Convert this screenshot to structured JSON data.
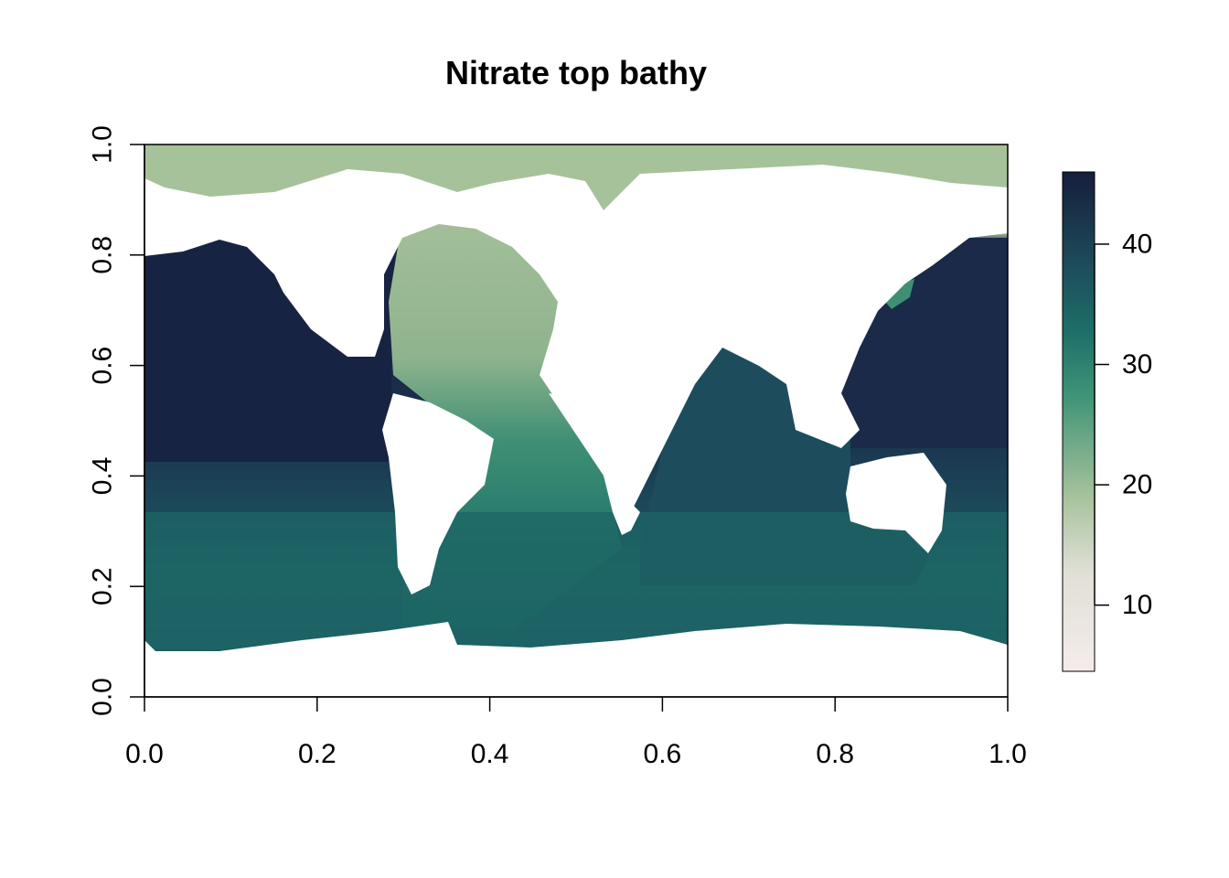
{
  "chart_data": {
    "type": "heatmap",
    "title": "Nitrate top bathy",
    "xlabel": "",
    "ylabel": "",
    "xlim": [
      0,
      1
    ],
    "ylim": [
      0,
      1
    ],
    "x_ticks": [
      "0.0",
      "0.2",
      "0.4",
      "0.6",
      "0.8",
      "1.0"
    ],
    "y_ticks": [
      "0.0",
      "0.2",
      "0.4",
      "0.6",
      "0.8",
      "1.0"
    ],
    "x_tick_values": [
      0,
      0.2,
      0.4,
      0.6,
      0.8,
      1.0
    ],
    "y_tick_values": [
      0,
      0.2,
      0.4,
      0.6,
      0.8,
      1.0
    ],
    "colorbar": {
      "range": [
        4.5,
        46
      ],
      "ticks": [
        "10",
        "20",
        "30",
        "40"
      ],
      "tick_values": [
        10,
        20,
        30,
        40
      ],
      "colors": [
        "#f5ecea",
        "#e0dfd6",
        "#a6c29b",
        "#3f9478",
        "#1d6f68",
        "#1d4a5a",
        "#151e3c"
      ]
    },
    "grid": false,
    "legend": "right"
  },
  "colors": {
    "land": "#ffffff",
    "arctic": "#a6c29b",
    "pacific_north": "#172342",
    "southern": "#1d5f63"
  }
}
